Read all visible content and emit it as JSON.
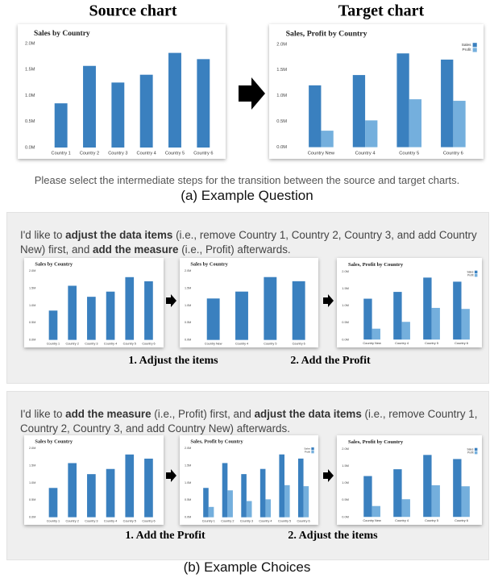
{
  "header": {
    "source_title": "Source chart",
    "target_title": "Target chart"
  },
  "question": {
    "source_chart": {
      "type": "bar",
      "title": "Sales by Country",
      "categories": [
        "Country 1",
        "Country 2",
        "Country 3",
        "Country 4",
        "Country 5",
        "Country 6"
      ],
      "values": [
        0.85,
        1.57,
        1.25,
        1.4,
        1.82,
        1.7
      ],
      "color": "#3a80bf",
      "ylim": [
        0,
        2
      ],
      "yticks": [
        {
          "value": 0,
          "label": "0.0M"
        },
        {
          "value": 0.5,
          "label": "0.5M"
        },
        {
          "value": 1,
          "label": "1.0M"
        },
        {
          "value": 1.5,
          "label": "1.5M"
        },
        {
          "value": 2,
          "label": "2.0M"
        }
      ]
    },
    "target_chart": {
      "type": "bar",
      "title": "Sales, Profit by Country",
      "categories": [
        "Country New",
        "Country 4",
        "Country 5",
        "Country 6"
      ],
      "series": [
        {
          "name": "Sales",
          "color": "#3a80bf",
          "values": [
            1.2,
            1.4,
            1.82,
            1.7
          ]
        },
        {
          "name": "Profit",
          "color": "#74afdd",
          "values": [
            0.32,
            0.52,
            0.93,
            0.9
          ]
        }
      ],
      "legend": "top-right",
      "ylim": [
        0,
        2
      ],
      "yticks": [
        {
          "value": 0,
          "label": "0.0M"
        },
        {
          "value": 0.5,
          "label": "0.5M"
        },
        {
          "value": 1,
          "label": "1.0M"
        },
        {
          "value": 1.5,
          "label": "1.5M"
        },
        {
          "value": 2,
          "label": "2.0M"
        }
      ]
    },
    "prompt": "Please select the intermediate steps for the transition between the source and target charts.",
    "caption": "(a) Example Question"
  },
  "choices": [
    {
      "text": [
        {
          "text": "I'd like to ",
          "bold": false
        },
        {
          "text": "adjust the data items",
          "bold": true
        },
        {
          "text": " (i.e., remove Country 1, Country 2, Country 3, and add Country New) first, and ",
          "bold": false
        },
        {
          "text": "add the measure",
          "bold": true
        },
        {
          "text": " (i.e., Profit) afterwards.",
          "bold": false
        }
      ],
      "charts": [
        {
          "type": "bar",
          "title": "Sales by Country",
          "categories": [
            "Country 1",
            "Country 2",
            "Country 3",
            "Country 4",
            "Country 5",
            "Country 6"
          ],
          "values": [
            0.85,
            1.57,
            1.25,
            1.4,
            1.82,
            1.7
          ],
          "color": "#3a80bf",
          "ylim": [
            0,
            2
          ],
          "yticks": [
            {
              "value": 0,
              "label": "0.0M"
            },
            {
              "value": 0.5,
              "label": "0.5M"
            },
            {
              "value": 1,
              "label": "1.0M"
            },
            {
              "value": 1.5,
              "label": "1.5M"
            },
            {
              "value": 2,
              "label": "2.0M"
            }
          ]
        },
        {
          "type": "bar",
          "title": "Sales by Country",
          "categories": [
            "Country New",
            "Country 4",
            "Country 5",
            "Country 6"
          ],
          "values": [
            1.2,
            1.4,
            1.82,
            1.7
          ],
          "color": "#3a80bf",
          "ylim": [
            0,
            2
          ],
          "yticks": [
            {
              "value": 0,
              "label": "0.0M"
            },
            {
              "value": 0.5,
              "label": "0.5M"
            },
            {
              "value": 1,
              "label": "1.0M"
            },
            {
              "value": 1.5,
              "label": "1.5M"
            },
            {
              "value": 2,
              "label": "2.0M"
            }
          ]
        },
        {
          "type": "bar",
          "title": "Sales, Profit by Country",
          "categories": [
            "Country New",
            "Country 4",
            "Country 5",
            "Country 6"
          ],
          "series": [
            {
              "name": "Sales",
              "color": "#3a80bf",
              "values": [
                1.2,
                1.4,
                1.82,
                1.7
              ]
            },
            {
              "name": "Profit",
              "color": "#74afdd",
              "values": [
                0.32,
                0.52,
                0.93,
                0.9
              ]
            }
          ],
          "legend": "top-right",
          "ylim": [
            0,
            2
          ],
          "yticks": [
            {
              "value": 0,
              "label": "0.0M"
            },
            {
              "value": 0.5,
              "label": "0.5M"
            },
            {
              "value": 1,
              "label": "1.0M"
            },
            {
              "value": 1.5,
              "label": "1.5M"
            },
            {
              "value": 2,
              "label": "2.0M"
            }
          ]
        }
      ],
      "steps": [
        "1. Adjust the items",
        "2. Add the Profit"
      ]
    },
    {
      "text": [
        {
          "text": "I'd like to ",
          "bold": false
        },
        {
          "text": "add the measure",
          "bold": true
        },
        {
          "text": " (i.e., Profit) first, and ",
          "bold": false
        },
        {
          "text": "adjust the data items",
          "bold": true
        },
        {
          "text": " (i.e., remove Country 1, Country 2, Country 3, and add Country New) afterwards.",
          "bold": false
        }
      ],
      "charts": [
        {
          "type": "bar",
          "title": "Sales by Country",
          "categories": [
            "Country 1",
            "Country 2",
            "Country 3",
            "Country 4",
            "Country 5",
            "Country 6"
          ],
          "values": [
            0.85,
            1.57,
            1.25,
            1.4,
            1.82,
            1.7
          ],
          "color": "#3a80bf",
          "ylim": [
            0,
            2
          ],
          "yticks": [
            {
              "value": 0,
              "label": "0.0M"
            },
            {
              "value": 0.5,
              "label": "0.5M"
            },
            {
              "value": 1,
              "label": "1.0M"
            },
            {
              "value": 1.5,
              "label": "1.5M"
            },
            {
              "value": 2,
              "label": "2.0M"
            }
          ]
        },
        {
          "type": "bar",
          "title": "Sales, Profit by Country",
          "categories": [
            "Country 1",
            "Country 2",
            "Country 3",
            "Country 4",
            "Country 5",
            "Country 6"
          ],
          "series": [
            {
              "name": "Sales",
              "color": "#3a80bf",
              "values": [
                0.85,
                1.57,
                1.25,
                1.4,
                1.82,
                1.7
              ]
            },
            {
              "name": "Profit",
              "color": "#74afdd",
              "values": [
                0.3,
                0.78,
                0.47,
                0.52,
                0.93,
                0.9
              ]
            }
          ],
          "legend": "top-right",
          "ylim": [
            0,
            2
          ],
          "yticks": [
            {
              "value": 0,
              "label": "0.0M"
            },
            {
              "value": 0.5,
              "label": "0.5M"
            },
            {
              "value": 1,
              "label": "1.0M"
            },
            {
              "value": 1.5,
              "label": "1.5M"
            },
            {
              "value": 2,
              "label": "2.0M"
            }
          ]
        },
        {
          "type": "bar",
          "title": "Sales, Profit by Country",
          "categories": [
            "Country New",
            "Country 4",
            "Country 5",
            "Country 6"
          ],
          "series": [
            {
              "name": "Sales",
              "color": "#3a80bf",
              "values": [
                1.2,
                1.4,
                1.82,
                1.7
              ]
            },
            {
              "name": "Profit",
              "color": "#74afdd",
              "values": [
                0.32,
                0.52,
                0.93,
                0.9
              ]
            }
          ],
          "legend": "top-right",
          "ylim": [
            0,
            2
          ],
          "yticks": [
            {
              "value": 0,
              "label": "0.0M"
            },
            {
              "value": 0.5,
              "label": "0.5M"
            },
            {
              "value": 1,
              "label": "1.0M"
            },
            {
              "value": 1.5,
              "label": "1.5M"
            },
            {
              "value": 2,
              "label": "2.0M"
            }
          ]
        }
      ],
      "steps": [
        "1. Add the Profit",
        "2. Adjust the items"
      ]
    }
  ],
  "caption": "(b) Example Choices"
}
